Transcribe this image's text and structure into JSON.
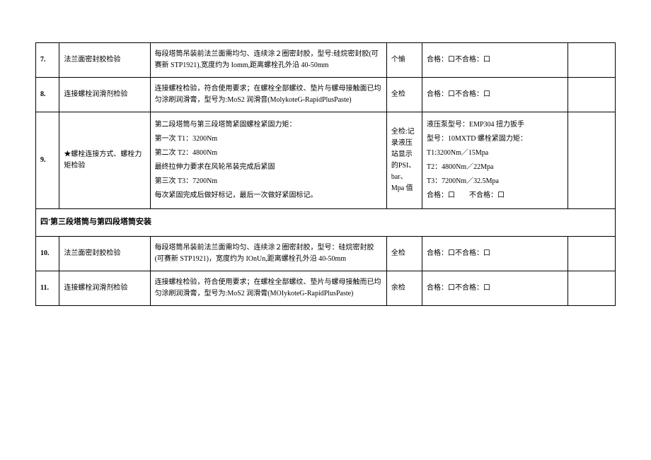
{
  "rows": {
    "r7": {
      "num": "7.",
      "item": "法兰面密封胶检验",
      "desc": "每段塔筒吊装前法兰面需均匀、连续涂２圈密封胶，型号:硅烷密封胶(可赛新 STP1921),宽度约为 Iomm,距离螺栓孔外沿 40-50mm",
      "check": "个愉",
      "result": "合格：口不合格：口",
      "last": ""
    },
    "r8": {
      "num": "8.",
      "item": "连接螺栓润滑剂检验",
      "desc": "连接螺栓检验，符合使用要求；在螺栓全部螺纹、垫片与螺母接触面已均匀涂刷润滑膏，型号为:MoS2 润滑音(MolykoteG-RapidPlusPaste)",
      "check": "全检",
      "result": "合格：口不合格：口",
      "last": ""
    },
    "r9": {
      "num": "9.",
      "item": "★螺栓连接方式、螺栓力矩检验",
      "desc_l1": "第二段塔筒与第三段塔筒紧固螺栓紧固力矩：",
      "desc_l2": "第一次 T1：3200Nm",
      "desc_l3": "第二次 T2：4800Nm",
      "desc_l4": "最终拉伸力要求在风轮吊装完成后紧固",
      "desc_l5": "第三次 T3：7200Nm",
      "desc_l6": "每次紧固完成后做好标记，最后一次做好紧固标记。",
      "check": "全检:记录液压站显示的PSI、bar、Mpa 值",
      "result_l1": "液压泵型号：EMP304 扭力扳手",
      "result_l2": "型号：10MXTD 螺栓紧固力矩：",
      "result_l3": "T1:3200Nm／15Mpa",
      "result_l4": "T2：4800Nm／22Mpa",
      "result_l5": "T3：7200Nm／32.5Mpa",
      "result_l6": "合格：口　　不合格：口",
      "last": ""
    },
    "section": "四'第三段塔筒与第四段塔筒安装",
    "r10": {
      "num": "10.",
      "item": "法兰面密封胶检验",
      "desc": "每段塔筒吊装前法兰面需均匀、连续涂２圈密封胶，型号：硅烷密封胶(可赛新 STP1921)，宽度约为 IOnUn,距离螺栓孔外沿 40-50mm",
      "check": "全检",
      "result": "合格：口不合格：口",
      "last": ""
    },
    "r11": {
      "num": "11.",
      "item": "连接螺栓润滑剂检验",
      "desc": "连接螺栓检验，符合使用要求；在螺栓全部螺纹、垫片与螺母接触而已均匀涂刷润滑膏，型号为:MoS2 润滑膏(MOIykoteG-RapidPlusPaste)",
      "check": "余检",
      "result": "合格：口不合格：口",
      "last": ""
    }
  },
  "style": {
    "border_color": "#000000",
    "background_color": "#ffffff",
    "font_size": 10,
    "text_color": "#000000"
  }
}
